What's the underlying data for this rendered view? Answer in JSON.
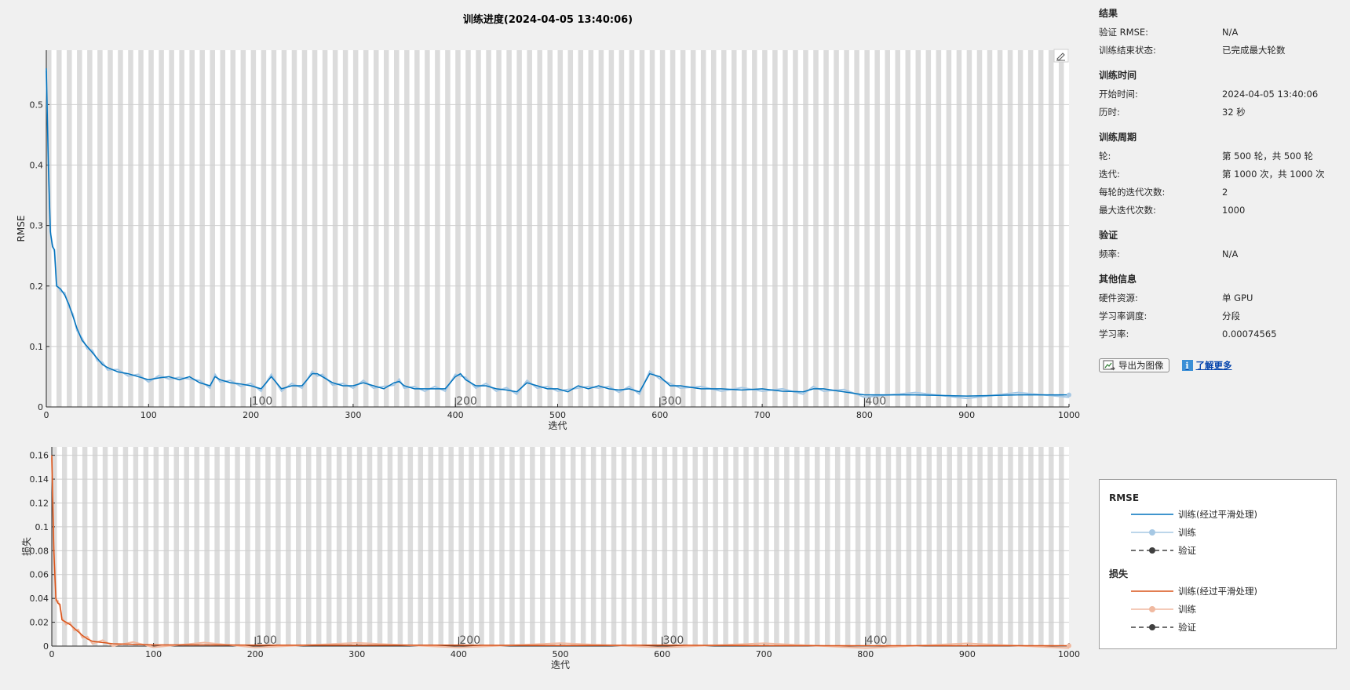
{
  "title": "训练进度(2024-04-05 13:40:06)",
  "colors": {
    "rmse_smooth": "#0072bd",
    "rmse_raw": "#a6c8e4",
    "loss_smooth": "#d95319",
    "loss_raw": "#f0b9a0",
    "validation": "#404040",
    "epoch_band": "#dcdcdc",
    "grid": "#cfcfcf"
  },
  "chart_data": [
    {
      "type": "line",
      "name": "rmse",
      "xlabel": "迭代",
      "ylabel": "RMSE",
      "xlim": [
        0,
        1000
      ],
      "ylim": [
        0,
        0.59
      ],
      "xticks": [
        0,
        100,
        200,
        300,
        400,
        500,
        600,
        700,
        800,
        900,
        1000
      ],
      "yticks": [
        0,
        0.1,
        0.2,
        0.3,
        0.4,
        0.5
      ],
      "ytick_labels": [
        "0",
        "0.1",
        "0.2",
        "0.3",
        "0.4",
        "0.5"
      ],
      "epoch_markers": [
        {
          "x": 200,
          "label": "100"
        },
        {
          "x": 400,
          "label": "200"
        },
        {
          "x": 600,
          "label": "300"
        },
        {
          "x": 800,
          "label": "400"
        }
      ],
      "grid": true,
      "x": [
        0,
        2,
        4,
        6,
        8,
        10,
        14,
        18,
        22,
        26,
        30,
        35,
        40,
        45,
        50,
        55,
        60,
        70,
        80,
        90,
        100,
        110,
        120,
        130,
        140,
        150,
        160,
        165,
        170,
        180,
        190,
        200,
        210,
        220,
        230,
        240,
        250,
        260,
        265,
        270,
        280,
        290,
        300,
        310,
        320,
        330,
        340,
        345,
        350,
        360,
        370,
        380,
        390,
        400,
        405,
        410,
        420,
        430,
        440,
        450,
        460,
        470,
        480,
        490,
        500,
        510,
        520,
        530,
        540,
        550,
        560,
        570,
        580,
        590,
        600,
        610,
        620,
        640,
        660,
        680,
        700,
        720,
        740,
        750,
        760,
        780,
        800,
        850,
        900,
        950,
        1000
      ],
      "series": [
        {
          "name": "训练(经过平滑处理)",
          "values": [
            0.56,
            0.4,
            0.29,
            0.265,
            0.26,
            0.2,
            0.195,
            0.185,
            0.17,
            0.15,
            0.13,
            0.11,
            0.1,
            0.09,
            0.08,
            0.07,
            0.065,
            0.058,
            0.055,
            0.05,
            0.045,
            0.048,
            0.05,
            0.045,
            0.05,
            0.04,
            0.035,
            0.05,
            0.045,
            0.04,
            0.038,
            0.035,
            0.03,
            0.05,
            0.03,
            0.035,
            0.035,
            0.055,
            0.055,
            0.05,
            0.04,
            0.035,
            0.035,
            0.04,
            0.035,
            0.03,
            0.04,
            0.042,
            0.035,
            0.03,
            0.03,
            0.03,
            0.03,
            0.05,
            0.055,
            0.045,
            0.035,
            0.035,
            0.03,
            0.028,
            0.025,
            0.04,
            0.035,
            0.03,
            0.03,
            0.025,
            0.035,
            0.03,
            0.035,
            0.03,
            0.028,
            0.03,
            0.025,
            0.055,
            0.05,
            0.035,
            0.035,
            0.03,
            0.03,
            0.028,
            0.03,
            0.026,
            0.025,
            0.03,
            0.03,
            0.025,
            0.02,
            0.02,
            0.018,
            0.02,
            0.02
          ]
        }
      ]
    },
    {
      "type": "line",
      "name": "loss",
      "xlabel": "迭代",
      "ylabel": "损失",
      "xlim": [
        0,
        1000
      ],
      "ylim": [
        0,
        0.167
      ],
      "xticks": [
        0,
        100,
        200,
        300,
        400,
        500,
        600,
        700,
        800,
        900,
        1000
      ],
      "yticks": [
        0,
        0.02,
        0.04,
        0.06,
        0.08,
        0.1,
        0.12,
        0.14,
        0.16
      ],
      "ytick_labels": [
        "0",
        "0.02",
        "0.04",
        "0.06",
        "0.08",
        "0.1",
        "0.12",
        "0.14",
        "0.16"
      ],
      "epoch_markers": [
        {
          "x": 200,
          "label": "100"
        },
        {
          "x": 400,
          "label": "200"
        },
        {
          "x": 600,
          "label": "300"
        },
        {
          "x": 800,
          "label": "400"
        }
      ],
      "grid": true,
      "x": [
        0,
        2,
        4,
        6,
        8,
        10,
        14,
        18,
        22,
        26,
        30,
        35,
        40,
        50,
        60,
        80,
        100,
        150,
        200,
        300,
        400,
        500,
        600,
        700,
        800,
        900,
        1000
      ],
      "series": [
        {
          "name": "训练(经过平滑处理)",
          "values": [
            0.16,
            0.08,
            0.04,
            0.036,
            0.035,
            0.022,
            0.02,
            0.018,
            0.015,
            0.012,
            0.009,
            0.006,
            0.004,
            0.003,
            0.002,
            0.0015,
            0.001,
            0.001,
            0.0008,
            0.0007,
            0.0008,
            0.0005,
            0.0008,
            0.0004,
            0.0003,
            0.0003,
            0.0003
          ]
        }
      ]
    }
  ],
  "legend": {
    "rmse_title": "RMSE",
    "loss_title": "损失",
    "smooth_label": "训练(经过平滑处理)",
    "raw_label": "训练",
    "validation_label": "验证"
  },
  "side": {
    "results": {
      "title": "结果",
      "rows": [
        {
          "key": "验证 RMSE:",
          "value": "N/A"
        },
        {
          "key": "训练结束状态:",
          "value": "已完成最大轮数"
        }
      ]
    },
    "time": {
      "title": "训练时间",
      "rows": [
        {
          "key": "开始时间:",
          "value": "2024-04-05 13:40:06"
        },
        {
          "key": "历时:",
          "value": "32 秒"
        }
      ]
    },
    "cycle": {
      "title": "训练周期",
      "rows": [
        {
          "key": "轮:",
          "value": "第 500 轮，共 500 轮"
        },
        {
          "key": "迭代:",
          "value": "第 1000 次，共 1000 次"
        },
        {
          "key": "每轮的迭代次数:",
          "value": "2"
        },
        {
          "key": "最大迭代次数:",
          "value": "1000"
        }
      ]
    },
    "validation": {
      "title": "验证",
      "rows": [
        {
          "key": "频率:",
          "value": "N/A"
        }
      ]
    },
    "other": {
      "title": "其他信息",
      "rows": [
        {
          "key": "硬件资源:",
          "value": "单 GPU"
        },
        {
          "key": "学习率调度:",
          "value": "分段"
        },
        {
          "key": "学习率:",
          "value": "0.00074565"
        }
      ]
    },
    "export_label": "导出为图像",
    "learn_more_label": "了解更多"
  }
}
